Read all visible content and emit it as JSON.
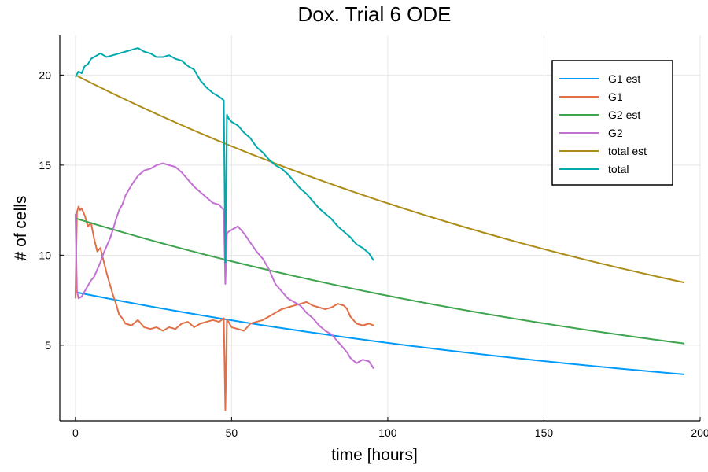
{
  "chart_data": {
    "type": "line",
    "title": "Dox. Trial 6 ODE",
    "xlabel": "time [hours]",
    "ylabel": "# of cells",
    "xlim": [
      -5,
      200
    ],
    "ylim": [
      0.8,
      22.2
    ],
    "xticks": [
      0,
      50,
      100,
      150,
      200
    ],
    "yticks": [
      5,
      10,
      15,
      20
    ],
    "grid": true,
    "legend_position": "top-right",
    "series": [
      {
        "name": "G1 est",
        "color": "#009af9",
        "kind": "exp",
        "x_range": [
          0,
          195
        ],
        "y0": 7.95,
        "rate": 0.004385
      },
      {
        "name": "G1",
        "color": "#e26f46",
        "kind": "data",
        "x": [
          0,
          0.5,
          1,
          1.5,
          2,
          3,
          4,
          5,
          6,
          7,
          8,
          9,
          10,
          11,
          12,
          13,
          14,
          15,
          16,
          18,
          20,
          22,
          24,
          26,
          28,
          30,
          32,
          34,
          36,
          38,
          40,
          42,
          44,
          46,
          47.5,
          48,
          48.5,
          49,
          50,
          52,
          54,
          56,
          58,
          60,
          62,
          64,
          66,
          68,
          70,
          72,
          74,
          76,
          78,
          80,
          82,
          84,
          86,
          87,
          88,
          90,
          92,
          94,
          95.5
        ],
        "y": [
          7.6,
          12.4,
          12.7,
          12.5,
          12.6,
          12.2,
          11.6,
          11.8,
          10.9,
          10.2,
          10.4,
          9.7,
          9.0,
          8.4,
          7.8,
          7.3,
          6.7,
          6.5,
          6.2,
          6.1,
          6.4,
          6.0,
          5.9,
          6.0,
          5.8,
          6.0,
          5.9,
          6.2,
          6.3,
          6.0,
          6.2,
          6.3,
          6.4,
          6.3,
          6.5,
          1.4,
          6.4,
          6.3,
          6.0,
          5.9,
          5.8,
          6.2,
          6.3,
          6.4,
          6.6,
          6.8,
          7.0,
          7.1,
          7.2,
          7.3,
          7.4,
          7.2,
          7.1,
          7.0,
          7.1,
          7.3,
          7.2,
          7.0,
          6.6,
          6.2,
          6.1,
          6.2,
          6.1
        ]
      },
      {
        "name": "G2 est",
        "color": "#3ea44e",
        "kind": "exp",
        "x_range": [
          0,
          195
        ],
        "y0": 12.05,
        "rate": 0.004418
      },
      {
        "name": "G2",
        "color": "#c271d2",
        "kind": "data",
        "x": [
          0,
          0.5,
          1,
          2,
          3,
          4,
          5,
          6,
          7,
          8,
          9,
          10,
          11,
          12,
          13,
          14,
          15,
          16,
          18,
          20,
          22,
          24,
          26,
          28,
          30,
          32,
          34,
          36,
          38,
          40,
          42,
          44,
          46,
          47.5,
          48,
          48.5,
          49,
          50,
          52,
          54,
          56,
          58,
          60,
          62,
          64,
          66,
          68,
          70,
          72,
          74,
          76,
          78,
          80,
          82,
          84,
          86,
          87,
          88,
          90,
          92,
          94,
          95.5
        ],
        "y": [
          12.3,
          8.0,
          7.6,
          7.7,
          8.0,
          8.3,
          8.6,
          8.8,
          9.2,
          9.6,
          10.1,
          10.5,
          10.9,
          11.4,
          12.0,
          12.5,
          12.8,
          13.3,
          13.9,
          14.4,
          14.7,
          14.8,
          15.0,
          15.1,
          15.0,
          14.9,
          14.6,
          14.2,
          13.8,
          13.5,
          13.2,
          12.9,
          12.8,
          12.5,
          8.4,
          11.2,
          11.3,
          11.4,
          11.6,
          11.2,
          10.7,
          10.2,
          9.8,
          9.2,
          8.4,
          8.0,
          7.6,
          7.4,
          7.2,
          6.8,
          6.5,
          6.1,
          5.8,
          5.6,
          5.2,
          4.8,
          4.6,
          4.3,
          4.0,
          4.2,
          4.1,
          3.7
        ]
      },
      {
        "name": "total est",
        "color": "#ac8d18",
        "kind": "exp",
        "x_range": [
          0,
          195
        ],
        "y0": 20.0,
        "rate": 0.004402
      },
      {
        "name": "total",
        "color": "#00a9ad",
        "kind": "data",
        "x": [
          0,
          1,
          2,
          3,
          4,
          5,
          6,
          7,
          8,
          9,
          10,
          12,
          14,
          16,
          18,
          20,
          22,
          24,
          26,
          28,
          30,
          32,
          34,
          36,
          38,
          40,
          42,
          44,
          46,
          47.5,
          48,
          48.5,
          49,
          50,
          52,
          54,
          56,
          58,
          60,
          62,
          64,
          66,
          68,
          70,
          72,
          74,
          76,
          78,
          80,
          82,
          84,
          86,
          88,
          90,
          92,
          94,
          95.5
        ],
        "y": [
          19.9,
          20.2,
          20.1,
          20.5,
          20.6,
          20.9,
          21.0,
          21.1,
          21.2,
          21.1,
          21.0,
          21.1,
          21.2,
          21.3,
          21.4,
          21.5,
          21.3,
          21.2,
          21.0,
          21.0,
          21.1,
          20.9,
          20.8,
          20.5,
          20.3,
          19.7,
          19.3,
          19.0,
          18.8,
          18.6,
          9.6,
          17.8,
          17.6,
          17.4,
          17.2,
          16.8,
          16.5,
          16.0,
          15.7,
          15.3,
          15.0,
          14.8,
          14.5,
          14.1,
          13.7,
          13.4,
          13.0,
          12.6,
          12.3,
          12.0,
          11.6,
          11.3,
          11.0,
          10.6,
          10.4,
          10.1,
          9.7
        ]
      }
    ]
  }
}
